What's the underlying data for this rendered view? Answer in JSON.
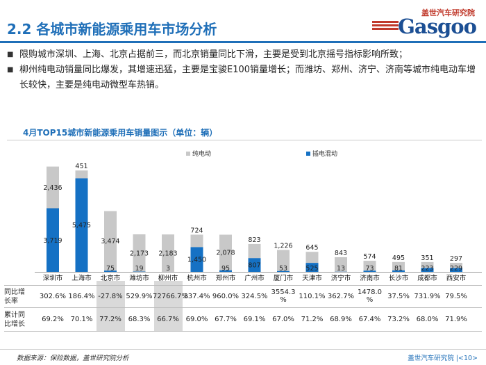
{
  "page": {
    "title": "2.2 各城市新能源乘用车市场分析",
    "logo": {
      "top_text": "盖世汽车研究院",
      "main_text": "Gasgoo"
    },
    "bullets": [
      "限购城市深圳、上海、北京占据前三，而北京销量同比下滑，主要是受到北京摇号指标影响所致；",
      "柳州纯电动销量同比爆发，其增速迅猛，主要是宝骏E100销量增长；而潍坊、郑州、济宁、济南等城市纯电动车增长较快，主要是纯电动微型车热销。"
    ],
    "footer": {
      "source": "数据来源：保险数据，盖世研究院分析",
      "org": "盖世汽车研究院 |<10>"
    }
  },
  "colors": {
    "ev": "#c8c8c8",
    "phev": "#1571c4",
    "title_blue": "#1f6fb8"
  },
  "chart_data": {
    "type": "bar",
    "stacked": true,
    "title": "4月TOP15城市新能源乘用车销量图示（单位：辆）",
    "categories": [
      "深圳市",
      "上海市",
      "北京市",
      "潍坊市",
      "柳州市",
      "杭州市",
      "郑州市",
      "广州市",
      "厦门市",
      "天津市",
      "济宁市",
      "济南市",
      "长沙市",
      "成都市",
      "西安市"
    ],
    "series": [
      {
        "name": "插电混动",
        "values": [
          3719,
          5475,
          75,
          19,
          3,
          1450,
          95,
          807,
          53,
          525,
          13,
          73,
          81,
          223,
          229
        ]
      },
      {
        "name": "纯电动",
        "values": [
          2436,
          451,
          3474,
          2173,
          2183,
          724,
          2078,
          823,
          1226,
          645,
          843,
          574,
          495,
          351,
          297
        ]
      }
    ],
    "legend_position": "top",
    "legend_order": [
      "纯电动",
      "插电混动"
    ],
    "grid": false,
    "table": {
      "rows": [
        {
          "label_lines": [
            "同比增",
            "长率"
          ],
          "values": [
            "302.6%",
            "186.4%",
            "-27.8%",
            "529.9%",
            "72766.7%",
            "337.4%",
            "960.0%",
            "324.5%",
            "3554.3%",
            "110.1%",
            "362.7%",
            "1478.0%",
            "37.5%",
            "731.9%",
            "79.5%"
          ]
        },
        {
          "label_lines": [
            "累计同",
            "比增长"
          ],
          "values": [
            "69.2%",
            "70.1%",
            "77.2%",
            "68.3%",
            "66.7%",
            "69.0%",
            "67.7%",
            "69.1%",
            "67.0%",
            "71.2%",
            "68.9%",
            "67.4%",
            "73.2%",
            "68.0%",
            "71.9%"
          ]
        }
      ],
      "wrapped_cells": {
        "3554.3%": [
          "3554.3",
          "%"
        ],
        "1478.0%": [
          "1478.0",
          "%"
        ]
      },
      "shaded_columns": [
        2,
        4
      ]
    }
  }
}
